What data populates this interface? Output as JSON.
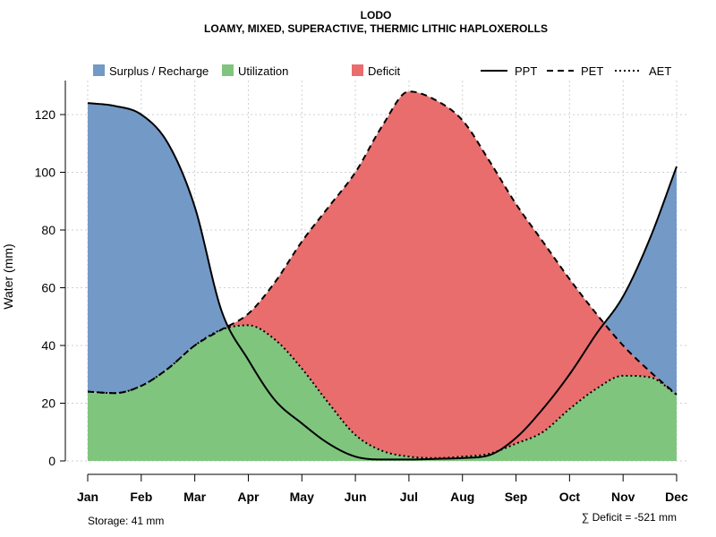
{
  "chart_data": {
    "type": "area",
    "title": "LODO",
    "subtitle": "LOAMY, MIXED, SUPERACTIVE, THERMIC LITHIC HAPLOXEROLLS",
    "ylabel": "Water (mm)",
    "xlabel": "",
    "ylim": [
      0,
      130
    ],
    "yticks": [
      0,
      20,
      40,
      60,
      80,
      100,
      120
    ],
    "grid": true,
    "legend_position": "top",
    "categories": [
      "Jan",
      "Feb",
      "Mar",
      "Apr",
      "May",
      "Jun",
      "Jul",
      "Aug",
      "Sep",
      "Oct",
      "Nov",
      "Dec"
    ],
    "x": [
      1,
      1.5,
      2,
      2.5,
      3,
      3.5,
      4,
      4.5,
      5,
      5.5,
      6,
      6.5,
      7,
      7.5,
      8,
      8.5,
      9,
      9.5,
      10,
      10.5,
      11,
      11.5,
      12
    ],
    "series": [
      {
        "name": "PPT",
        "line_style": "solid",
        "values": [
          124,
          123,
          120,
          110,
          88,
          52,
          35,
          21,
          13,
          6,
          1.5,
          0.5,
          0.5,
          0.7,
          1,
          2,
          8,
          18,
          30,
          44,
          57,
          77,
          102
        ]
      },
      {
        "name": "PET",
        "line_style": "dashed",
        "values": [
          24,
          23.5,
          26,
          32,
          40,
          45.5,
          51,
          62,
          76,
          88,
          100,
          116,
          128,
          125,
          118,
          104,
          89,
          76,
          63,
          51,
          40,
          31,
          23
        ]
      },
      {
        "name": "AET",
        "line_style": "dotted",
        "values": [
          24,
          23.5,
          26,
          32,
          40,
          45.5,
          47,
          42,
          32,
          20,
          9,
          3.5,
          1.5,
          1,
          1.5,
          2.5,
          6,
          10,
          18,
          25,
          29.5,
          29,
          23
        ]
      }
    ],
    "fill_legend": [
      {
        "name": "Surplus / Recharge",
        "color": "#7399c6"
      },
      {
        "name": "Utilization",
        "color": "#7fc57e"
      },
      {
        "name": "Deficit",
        "color": "#e96d6d"
      }
    ],
    "line_legend": [
      {
        "name": "PPT",
        "line_style": "solid"
      },
      {
        "name": "PET",
        "line_style": "dashed"
      },
      {
        "name": "AET",
        "line_style": "dotted"
      }
    ],
    "annotations": {
      "storage": "Storage: 41 mm",
      "deficit": "∑ Deficit = -521 mm"
    }
  }
}
